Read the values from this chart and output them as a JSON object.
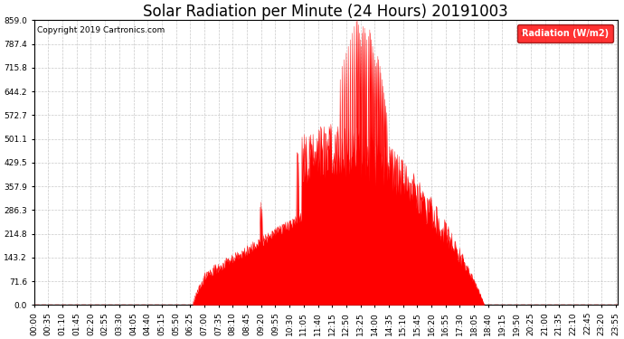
{
  "title": "Solar Radiation per Minute (24 Hours) 20191003",
  "copyright_text": "Copyright 2019 Cartronics.com",
  "legend_label": "Radiation (W/m2)",
  "ylim": [
    0.0,
    859.0
  ],
  "yticks": [
    0.0,
    71.6,
    143.2,
    214.8,
    286.3,
    357.9,
    429.5,
    501.1,
    572.7,
    644.2,
    715.8,
    787.4,
    859.0
  ],
  "fill_color": "#FF0000",
  "line_color": "#FF0000",
  "background_color": "#FFFFFF",
  "grid_color": "#BBBBBB",
  "dashed_line_color": "#FF0000",
  "title_fontsize": 12,
  "tick_fontsize": 6.5,
  "total_minutes": 1440,
  "xtick_interval_minutes": 35,
  "sunrise_min": 390,
  "sunset_min": 1110
}
